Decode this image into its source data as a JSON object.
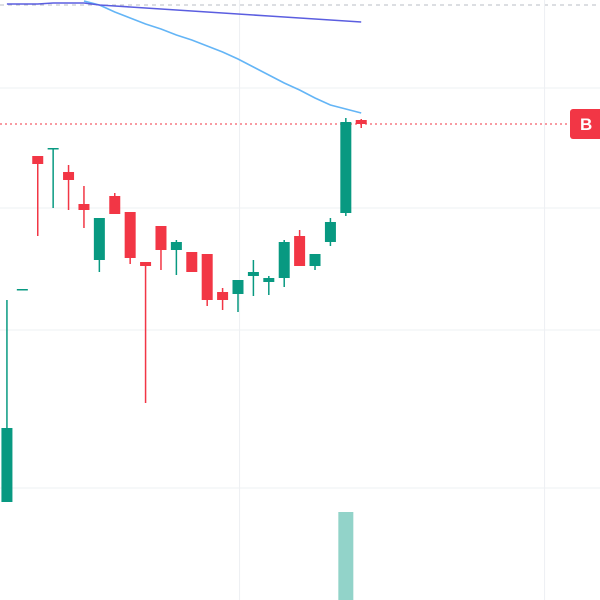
{
  "chart_data": {
    "type": "candlestick",
    "xlim": [
      -0.45,
      38.5
    ],
    "xticks": [
      15.1,
      34.9
    ],
    "ylim": [
      0,
      600
    ],
    "yticks": [
      112,
      270,
      392,
      512
    ],
    "grid": true,
    "up_color": "#089981",
    "down_color": "#f23645",
    "candles": [
      {
        "open": 98,
        "high": 300,
        "low": 98,
        "close": 172
      },
      {
        "open": 311,
        "high": 311,
        "low": 311,
        "close": 311
      },
      {
        "open": 444,
        "high": 444,
        "low": 364,
        "close": 436
      },
      {
        "open": 452,
        "high": 452,
        "low": 392,
        "close": 452
      },
      {
        "open": 428,
        "high": 435,
        "low": 390,
        "close": 420
      },
      {
        "open": 396,
        "high": 414,
        "low": 372,
        "close": 390
      },
      {
        "open": 340,
        "high": 382,
        "low": 328,
        "close": 382
      },
      {
        "open": 404,
        "high": 407,
        "low": 386,
        "close": 386
      },
      {
        "open": 388,
        "high": 388,
        "low": 336,
        "close": 342
      },
      {
        "open": 338,
        "high": 338,
        "low": 197,
        "close": 334
      },
      {
        "open": 374,
        "high": 374,
        "low": 330,
        "close": 350
      },
      {
        "open": 350,
        "high": 360,
        "low": 325,
        "close": 358
      },
      {
        "open": 348,
        "high": 348,
        "low": 328,
        "close": 328
      },
      {
        "open": 346,
        "high": 346,
        "low": 294,
        "close": 300
      },
      {
        "open": 308,
        "high": 312,
        "low": 290,
        "close": 300
      },
      {
        "open": 306,
        "high": 320,
        "low": 288,
        "close": 320
      },
      {
        "open": 324,
        "high": 340,
        "low": 304,
        "close": 328
      },
      {
        "open": 318,
        "high": 324,
        "low": 305,
        "close": 322
      },
      {
        "open": 322,
        "high": 360,
        "low": 313,
        "close": 358
      },
      {
        "open": 364,
        "high": 370,
        "low": 334,
        "close": 334
      },
      {
        "open": 334,
        "high": 346,
        "low": 330,
        "close": 346
      },
      {
        "open": 358,
        "high": 382,
        "low": 354,
        "close": 378
      },
      {
        "open": 387,
        "high": 482,
        "low": 384,
        "close": 478
      },
      {
        "open": 480,
        "high": 481,
        "low": 472,
        "close": 476
      }
    ],
    "volume": [
      null,
      null,
      null,
      null,
      null,
      null,
      null,
      null,
      null,
      null,
      null,
      null,
      null,
      null,
      null,
      null,
      null,
      null,
      null,
      null,
      null,
      null,
      88,
      null
    ],
    "volume_color": "#92d3c9",
    "series": [
      {
        "color": "#64b5f6",
        "values": [
          null,
          null,
          null,
          null,
          null,
          599,
          595,
          588,
          582,
          576,
          571,
          565,
          560,
          554,
          548,
          541,
          533,
          525,
          517,
          510,
          502,
          495,
          491,
          487
        ]
      },
      {
        "color": "#5b5ee0",
        "values": [
          596,
          596,
          596,
          597,
          597,
          597,
          595,
          594,
          593,
          592,
          591,
          590,
          589,
          588,
          587,
          586,
          585,
          584,
          583,
          582,
          581,
          580,
          579,
          578
        ]
      }
    ],
    "price_line": {
      "value": 476,
      "label": "B",
      "color": "#f23645"
    }
  }
}
